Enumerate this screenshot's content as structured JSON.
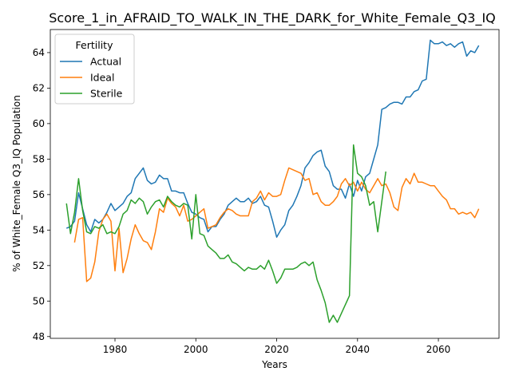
{
  "chart_data": {
    "type": "line",
    "title": "Score_1_in_AFRAID_TO_WALK_IN_THE_DARK_for_White_Female_Q3_IQ",
    "xlabel": "Years",
    "ylabel": "% of White_Female Q3_IQ Population",
    "xlim": [
      1964,
      2075
    ],
    "ylim": [
      47.9,
      65.3
    ],
    "xticks": [
      1980,
      2000,
      2020,
      2040,
      2060
    ],
    "yticks": [
      48,
      50,
      52,
      54,
      56,
      58,
      60,
      62,
      64
    ],
    "grid": false,
    "legend": {
      "title": "Fertility",
      "position": "top-left"
    },
    "series": [
      {
        "name": "Actual",
        "color": "#1f77b4",
        "x": [
          1968,
          1969,
          1970,
          1971,
          1972,
          1973,
          1974,
          1975,
          1976,
          1977,
          1978,
          1979,
          1980,
          1981,
          1982,
          1983,
          1984,
          1985,
          1986,
          1987,
          1988,
          1989,
          1990,
          1991,
          1992,
          1993,
          1994,
          1995,
          1996,
          1997,
          1998,
          1999,
          2000,
          2001,
          2002,
          2003,
          2004,
          2005,
          2006,
          2007,
          2008,
          2009,
          2010,
          2011,
          2012,
          2013,
          2014,
          2015,
          2016,
          2017,
          2018,
          2019,
          2020,
          2021,
          2022,
          2023,
          2024,
          2025,
          2026,
          2027,
          2028,
          2029,
          2030,
          2031,
          2032,
          2033,
          2034,
          2035,
          2036,
          2037,
          2038,
          2039,
          2040,
          2041,
          2042,
          2043,
          2044,
          2045,
          2046,
          2047,
          2048,
          2049,
          2050,
          2051,
          2052,
          2053,
          2054,
          2055,
          2056,
          2057,
          2058,
          2059,
          2060,
          2061,
          2062,
          2063,
          2064,
          2065,
          2066,
          2067,
          2068,
          2069,
          2070
        ],
        "values": [
          54.1,
          54.2,
          54.5,
          56.1,
          55.2,
          54.3,
          53.9,
          54.6,
          54.4,
          54.6,
          55.0,
          55.5,
          55.1,
          55.3,
          55.5,
          55.9,
          56.1,
          56.9,
          57.2,
          57.5,
          56.8,
          56.6,
          56.7,
          57.1,
          56.9,
          56.9,
          56.2,
          56.2,
          56.1,
          56.1,
          55.5,
          55.0,
          54.9,
          54.7,
          54.6,
          53.9,
          54.2,
          54.2,
          54.6,
          54.9,
          55.4,
          55.6,
          55.8,
          55.6,
          55.6,
          55.8,
          55.5,
          55.6,
          55.9,
          55.4,
          55.3,
          54.5,
          53.6,
          54.0,
          54.3,
          55.1,
          55.4,
          55.9,
          56.5,
          57.5,
          57.8,
          58.2,
          58.4,
          58.5,
          57.6,
          57.3,
          56.5,
          56.3,
          56.3,
          55.8,
          56.6,
          55.9,
          56.8,
          56.2,
          57.0,
          57.2,
          58.0,
          58.8,
          60.8,
          60.9,
          61.1,
          61.2,
          61.2,
          61.1,
          61.5,
          61.5,
          61.8,
          61.9,
          62.4,
          62.5,
          64.7,
          64.5,
          64.5,
          64.6,
          64.4,
          64.5,
          64.3,
          64.5,
          64.6,
          63.8,
          64.1,
          64.0,
          64.4
        ]
      },
      {
        "name": "Ideal",
        "color": "#ff7f0e",
        "x": [
          1970,
          1971,
          1972,
          1973,
          1974,
          1975,
          1976,
          1977,
          1978,
          1979,
          1980,
          1981,
          1982,
          1983,
          1984,
          1985,
          1986,
          1987,
          1988,
          1989,
          1990,
          1991,
          1992,
          1993,
          1994,
          1995,
          1996,
          1997,
          1998,
          1999,
          2000,
          2001,
          2002,
          2003,
          2004,
          2005,
          2006,
          2007,
          2008,
          2009,
          2010,
          2011,
          2012,
          2013,
          2014,
          2015,
          2016,
          2017,
          2018,
          2019,
          2020,
          2021,
          2022,
          2023,
          2024,
          2025,
          2026,
          2027,
          2028,
          2029,
          2030,
          2031,
          2032,
          2033,
          2034,
          2035,
          2036,
          2037,
          2038,
          2039,
          2040,
          2041,
          2042,
          2043,
          2044,
          2045,
          2046,
          2047,
          2048,
          2049,
          2050,
          2051,
          2052,
          2053,
          2054,
          2055,
          2056,
          2057,
          2058,
          2059,
          2060,
          2061,
          2062,
          2063,
          2064,
          2065,
          2066,
          2067,
          2068,
          2069,
          2070
        ],
        "values": [
          53.3,
          54.6,
          54.7,
          51.1,
          51.3,
          52.2,
          53.9,
          54.6,
          54.9,
          54.5,
          51.7,
          54.1,
          51.6,
          52.4,
          53.5,
          54.3,
          53.8,
          53.4,
          53.3,
          52.9,
          53.9,
          55.2,
          55.0,
          55.8,
          55.5,
          55.3,
          54.8,
          55.4,
          54.5,
          54.6,
          54.8,
          55.0,
          55.2,
          54.1,
          54.2,
          54.3,
          54.7,
          55.0,
          55.2,
          55.1,
          54.9,
          54.8,
          54.8,
          54.8,
          55.6,
          55.8,
          56.2,
          55.7,
          56.1,
          55.9,
          55.9,
          56.0,
          56.8,
          57.5,
          57.4,
          57.3,
          57.2,
          56.8,
          56.9,
          56.0,
          56.1,
          55.6,
          55.4,
          55.4,
          55.6,
          55.9,
          56.6,
          56.9,
          56.5,
          56.7,
          56.2,
          56.7,
          56.3,
          56.1,
          56.5,
          56.9,
          56.5,
          56.6,
          56.1,
          55.3,
          55.1,
          56.4,
          56.9,
          56.6,
          57.2,
          56.7,
          56.7,
          56.6,
          56.5,
          56.5,
          56.2,
          55.9,
          55.7,
          55.2,
          55.2,
          54.9,
          55.0,
          54.9,
          55.0,
          54.7,
          55.2
        ]
      },
      {
        "name": "Sterile",
        "color": "#2ca02c",
        "x": [
          1968,
          1969,
          1970,
          1971,
          1972,
          1973,
          1974,
          1975,
          1976,
          1977,
          1978,
          1979,
          1980,
          1981,
          1982,
          1983,
          1984,
          1985,
          1986,
          1987,
          1988,
          1989,
          1990,
          1991,
          1992,
          1993,
          1994,
          1995,
          1996,
          1997,
          1998,
          1999,
          2000,
          2001,
          2002,
          2003,
          2004,
          2005,
          2006,
          2007,
          2008,
          2009,
          2010,
          2011,
          2012,
          2013,
          2014,
          2015,
          2016,
          2017,
          2018,
          2019,
          2020,
          2021,
          2022,
          2023,
          2024,
          2025,
          2026,
          2027,
          2028,
          2029,
          2030,
          2031,
          2032,
          2033,
          2034,
          2035,
          2036,
          2037,
          2038,
          2039,
          2040,
          2041,
          2042,
          2043,
          2044,
          2045,
          2046,
          2047
        ],
        "values": [
          55.5,
          53.8,
          55.0,
          56.9,
          55.1,
          53.9,
          53.8,
          54.2,
          54.1,
          54.3,
          53.8,
          53.9,
          53.8,
          54.2,
          54.9,
          55.1,
          55.7,
          55.5,
          55.8,
          55.6,
          54.9,
          55.3,
          55.6,
          55.7,
          55.3,
          55.9,
          55.6,
          55.4,
          55.3,
          55.5,
          55.4,
          53.5,
          56.0,
          53.8,
          53.7,
          53.1,
          52.9,
          52.7,
          52.4,
          52.4,
          52.6,
          52.2,
          52.1,
          51.9,
          51.7,
          51.9,
          51.8,
          51.8,
          52.0,
          51.8,
          52.3,
          51.7,
          51.0,
          51.3,
          51.8,
          51.8,
          51.8,
          51.9,
          52.1,
          52.2,
          52.0,
          52.2,
          51.2,
          50.6,
          49.9,
          48.8,
          49.2,
          48.8,
          49.3,
          49.8,
          50.3,
          58.8,
          57.2,
          57.0,
          56.5,
          55.4,
          55.6,
          53.9,
          55.6,
          57.3
        ]
      }
    ]
  }
}
